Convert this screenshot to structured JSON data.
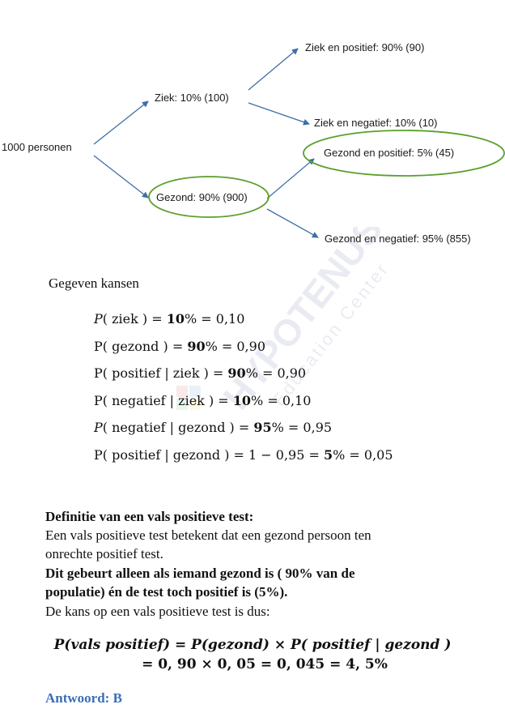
{
  "diagram": {
    "root": "1000 personen",
    "ziek": "Ziek: 10% (100)",
    "gezond": "Gezond: 90% (900)",
    "ziek_pos": "Ziek en positief: 90% (90)",
    "ziek_neg": "Ziek en negatief: 10% (10)",
    "gez_pos": "Gezond en positief: 5% (45)",
    "gez_neg": "Gezond en negatief: 95% (855)",
    "arrow_color": "#3d6fa8",
    "circle_color": "#5aa02c"
  },
  "watermark": {
    "title": "HYPOTENUSE",
    "subtitle": "Education Center"
  },
  "given": {
    "heading": "Gegeven kansen",
    "p1": {
      "pre": "P",
      "arg": "( ziek ) = ",
      "pct": "10",
      "post": "% = 0,10"
    },
    "p2": {
      "pre": "P( gezond ) = ",
      "pct": "90",
      "post": "% = 0,90"
    },
    "p3": {
      "pre": "P( positief | ziek ) = ",
      "pct": "90",
      "post": "% = 0,90"
    },
    "p4": {
      "pre": "P( negatief | ziek ) = ",
      "pct": "10",
      "post": "% = 0,10"
    },
    "p5": {
      "pre": "P",
      "arg": "( negatief | gezond ) = ",
      "pct": "95",
      "post": "% = 0,95"
    },
    "p6": {
      "pre": "P( positief | gezond ) = 1 − 0,95 = ",
      "pct": "5",
      "post": "% = 0,05"
    }
  },
  "definition": {
    "heading": "Definitie van een vals positieve test:",
    "line1": "Een vals positieve test betekent dat een gezond persoon ten",
    "line2": "onrechte positief test.",
    "bold1": "Dit gebeurt alleen als iemand gezond is ( 90% van de",
    "bold2": "populatie) én de test toch positief is (5%).",
    "line3": "De kans op een vals positieve test is dus:"
  },
  "formula": {
    "line1": "P(vals positief) = P(gezond) × P( positief | gezond )",
    "line2": "= 0, 90 × 0, 05 = 0, 045 = 4, 5%"
  },
  "answer": "Antwoord: B"
}
